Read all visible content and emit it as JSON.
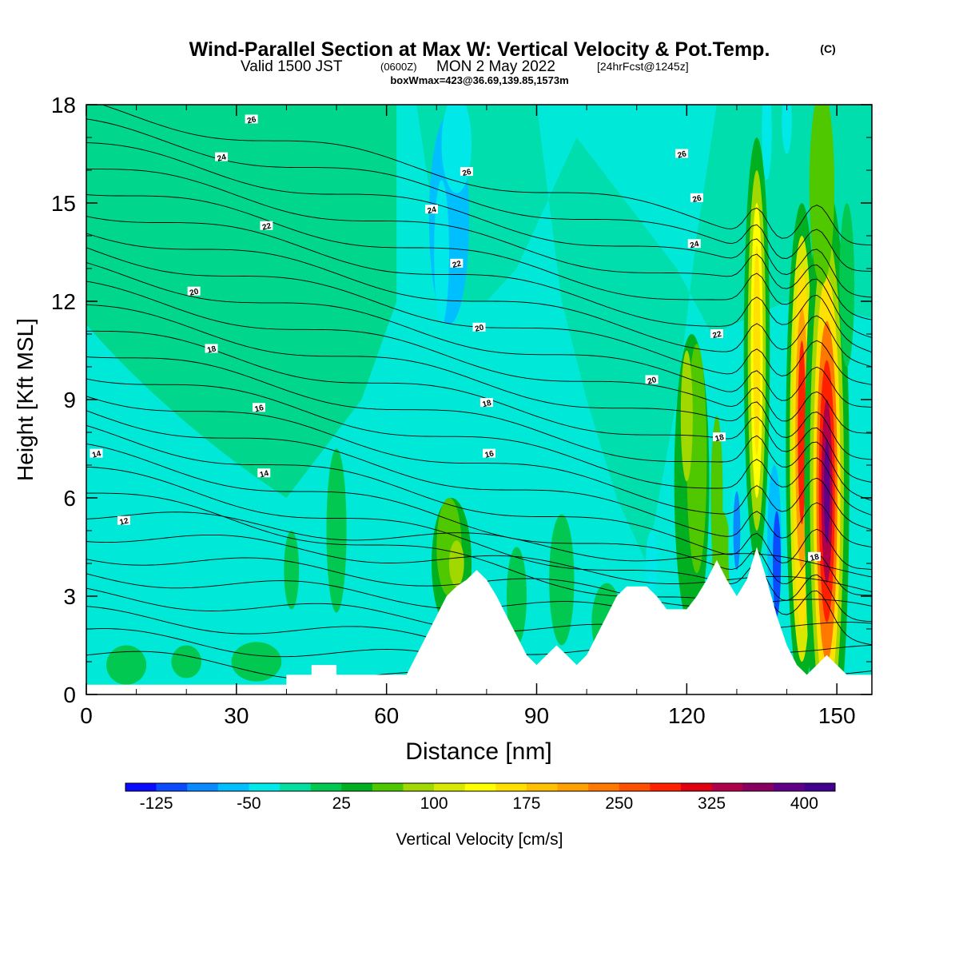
{
  "title": {
    "main": "Wind-Parallel Section at Max W: Vertical Velocity & Pot.Temp.",
    "copyright": "(C)",
    "valid_prefix": "Valid 1500 JST",
    "valid_utc": "(0600Z)",
    "valid_date": "MON 2 May 2022",
    "forecast": "[24hrFcst@1245z]",
    "boxline": "boxWmax=423@36.69,139.85,1573m"
  },
  "chart_data": {
    "type": "heatmap",
    "xlabel": "Distance [nm]",
    "ylabel": "Height [Kft MSL]",
    "xlim": [
      0,
      157
    ],
    "ylim": [
      0,
      18
    ],
    "x_ticks": [
      "0",
      "30",
      "60",
      "90",
      "120",
      "150"
    ],
    "y_ticks": [
      "0",
      "3",
      "6",
      "9",
      "12",
      "15",
      "18"
    ],
    "colorbar": {
      "label": "Vertical Velocity [cm/s]",
      "tick_labels": [
        "-125",
        "-50",
        "25",
        "100",
        "175",
        "250",
        "325",
        "400"
      ],
      "levels": [
        -150,
        -125,
        -100,
        -75,
        -50,
        -25,
        0,
        25,
        50,
        75,
        100,
        125,
        150,
        175,
        200,
        225,
        250,
        275,
        300,
        325,
        350,
        375,
        400,
        425
      ],
      "colors": [
        "#0a0aff",
        "#0a4bff",
        "#0a8aff",
        "#00bfff",
        "#00e8e8",
        "#00dfa0",
        "#00c850",
        "#00b020",
        "#50c800",
        "#a0d800",
        "#d8e800",
        "#ffff00",
        "#ffe000",
        "#ffc000",
        "#ffa000",
        "#ff7800",
        "#ff5000",
        "#ff2000",
        "#e00010",
        "#b0004a",
        "#880060",
        "#600088",
        "#400090"
      ]
    },
    "theta_contour_labels": [
      {
        "x": 33,
        "y": 17.55,
        "text": "26"
      },
      {
        "x": 27,
        "y": 16.4,
        "text": "24"
      },
      {
        "x": 76,
        "y": 15.95,
        "text": "26"
      },
      {
        "x": 69,
        "y": 14.8,
        "text": "24"
      },
      {
        "x": 36,
        "y": 14.3,
        "text": "22"
      },
      {
        "x": 74,
        "y": 13.15,
        "text": "22"
      },
      {
        "x": 119,
        "y": 16.5,
        "text": "26"
      },
      {
        "x": 122,
        "y": 15.15,
        "text": "26"
      },
      {
        "x": 121.5,
        "y": 13.75,
        "text": "24"
      },
      {
        "x": 21.5,
        "y": 12.3,
        "text": "20"
      },
      {
        "x": 78.5,
        "y": 11.2,
        "text": "20"
      },
      {
        "x": 126,
        "y": 11.0,
        "text": "22"
      },
      {
        "x": 25,
        "y": 10.55,
        "text": "18"
      },
      {
        "x": 113,
        "y": 9.6,
        "text": "20"
      },
      {
        "x": 80,
        "y": 8.9,
        "text": "18"
      },
      {
        "x": 34.5,
        "y": 8.75,
        "text": "16"
      },
      {
        "x": 126.5,
        "y": 7.85,
        "text": "18"
      },
      {
        "x": 2,
        "y": 7.35,
        "text": "14"
      },
      {
        "x": 80.5,
        "y": 7.35,
        "text": "16"
      },
      {
        "x": 35.5,
        "y": 6.75,
        "text": "14"
      },
      {
        "x": 7.5,
        "y": 5.3,
        "text": "12"
      },
      {
        "x": 145.5,
        "y": 4.2,
        "text": "18"
      }
    ],
    "terrain_top_kft": [
      [
        0,
        0.3
      ],
      [
        40,
        0.3
      ],
      [
        40,
        0.6
      ],
      [
        45,
        0.6
      ],
      [
        45,
        0.9
      ],
      [
        50,
        0.9
      ],
      [
        50,
        0.6
      ],
      [
        64,
        0.6
      ],
      [
        66,
        1.2
      ],
      [
        68,
        1.8
      ],
      [
        70,
        2.4
      ],
      [
        72,
        3.0
      ],
      [
        74,
        3.3
      ],
      [
        76,
        3.5
      ],
      [
        78,
        3.8
      ],
      [
        80,
        3.5
      ],
      [
        82,
        3.0
      ],
      [
        84,
        2.4
      ],
      [
        86,
        1.8
      ],
      [
        88,
        1.2
      ],
      [
        90,
        0.9
      ],
      [
        92,
        1.2
      ],
      [
        94,
        1.5
      ],
      [
        96,
        1.2
      ],
      [
        98,
        0.9
      ],
      [
        100,
        1.2
      ],
      [
        102,
        1.8
      ],
      [
        104,
        2.4
      ],
      [
        106,
        3.0
      ],
      [
        108,
        3.3
      ],
      [
        112,
        3.3
      ],
      [
        114,
        3.0
      ],
      [
        116,
        2.6
      ],
      [
        120,
        2.6
      ],
      [
        122,
        3.0
      ],
      [
        124,
        3.5
      ],
      [
        126,
        4.1
      ],
      [
        128,
        3.5
      ],
      [
        130,
        3.0
      ],
      [
        132,
        3.5
      ],
      [
        134,
        4.5
      ],
      [
        136,
        3.5
      ],
      [
        138,
        2.4
      ],
      [
        140,
        1.5
      ],
      [
        142,
        0.9
      ],
      [
        144,
        0.6
      ],
      [
        146,
        0.9
      ],
      [
        148,
        1.2
      ],
      [
        150,
        0.9
      ],
      [
        152,
        0.6
      ],
      [
        157,
        0.6
      ]
    ],
    "updraft_cores": [
      {
        "x": 134,
        "y": 10.5,
        "max_cms": 175
      },
      {
        "x": 143,
        "y": 7.5,
        "max_cms": 325
      },
      {
        "x": 148,
        "y": 6.2,
        "max_cms": 400
      }
    ]
  }
}
